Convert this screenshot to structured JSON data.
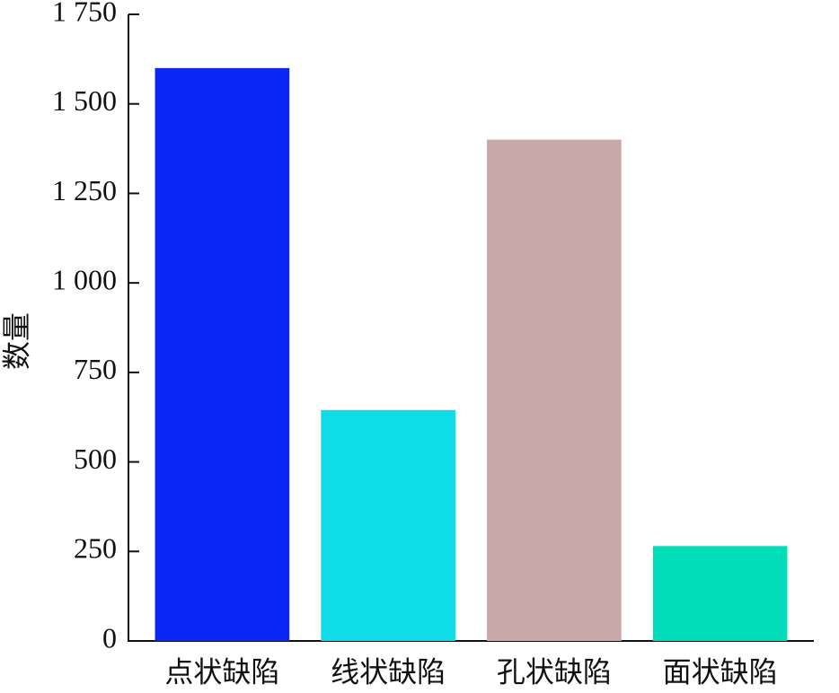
{
  "chart_data": {
    "type": "bar",
    "y_label": "数量",
    "categories": [
      "点状缺陷",
      "线状缺陷",
      "孔状缺陷",
      "面状缺陷"
    ],
    "values": [
      1600,
      645,
      1400,
      265
    ],
    "colors": [
      "#0a28f5",
      "#0edde8",
      "#c8a8a8",
      "#00ddb8"
    ],
    "ylim": [
      0,
      1750
    ],
    "yticks": [
      0,
      250,
      500,
      750,
      {
        "value": 1000,
        "label": "1 000"
      },
      {
        "value": 1250,
        "label": "1 250"
      },
      {
        "value": 1500,
        "label": "1 500"
      },
      {
        "value": 1750,
        "label": "1 750"
      }
    ],
    "grid": false
  }
}
